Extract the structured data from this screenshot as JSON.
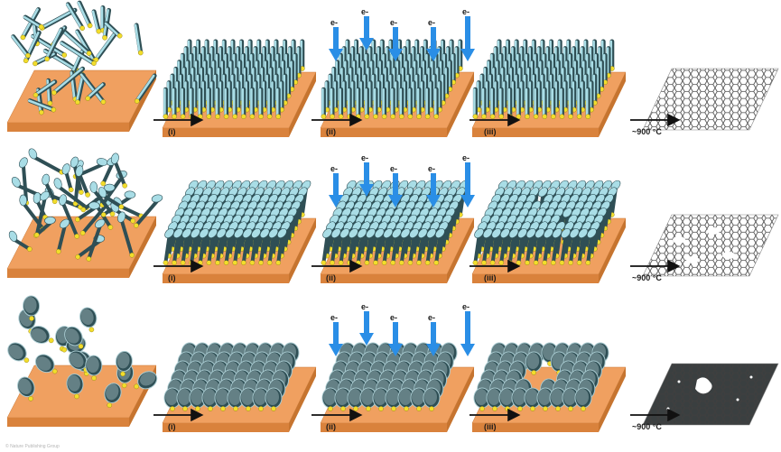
{
  "figure": {
    "rows": [
      {
        "molecule": "rod-like SAM precursor",
        "steps": [
          {
            "label": "(i)"
          },
          {
            "label": "(ii)",
            "electron_beams": [
              "e-",
              "e-",
              "e-",
              "e-",
              "e-"
            ]
          },
          {
            "label": "(iii)"
          },
          {
            "label": "~900 °C"
          }
        ],
        "product": "intact graphene sheet"
      },
      {
        "molecule": "bent SAM precursor",
        "steps": [
          {
            "label": "(i)"
          },
          {
            "label": "(ii)",
            "electron_beams": [
              "e-",
              "e-",
              "e-",
              "e-",
              "e-"
            ]
          },
          {
            "label": "(iii)"
          },
          {
            "label": "~900 °C"
          }
        ],
        "product": "graphene sheet with small holes"
      },
      {
        "molecule": "disc-like SAM precursor",
        "steps": [
          {
            "label": "(i)"
          },
          {
            "label": "(ii)",
            "electron_beams": [
              "e-",
              "e-",
              "e-",
              "e-",
              "e-"
            ]
          },
          {
            "label": "(iii)"
          },
          {
            "label": "~900 °C"
          }
        ],
        "product": "graphene sheet with large hole"
      }
    ],
    "colors": {
      "substrate": "#f0a060",
      "substrate_side": "#d9823c",
      "molecule": "#a9dde6",
      "molecule_dark": "#2f4f55",
      "anchor": "#f2dd2c",
      "electron_arrow": "#2a8ee6",
      "graphene": "#555555",
      "process_arrow": "#111111"
    },
    "watermark": "© Nature Publishing Group"
  }
}
